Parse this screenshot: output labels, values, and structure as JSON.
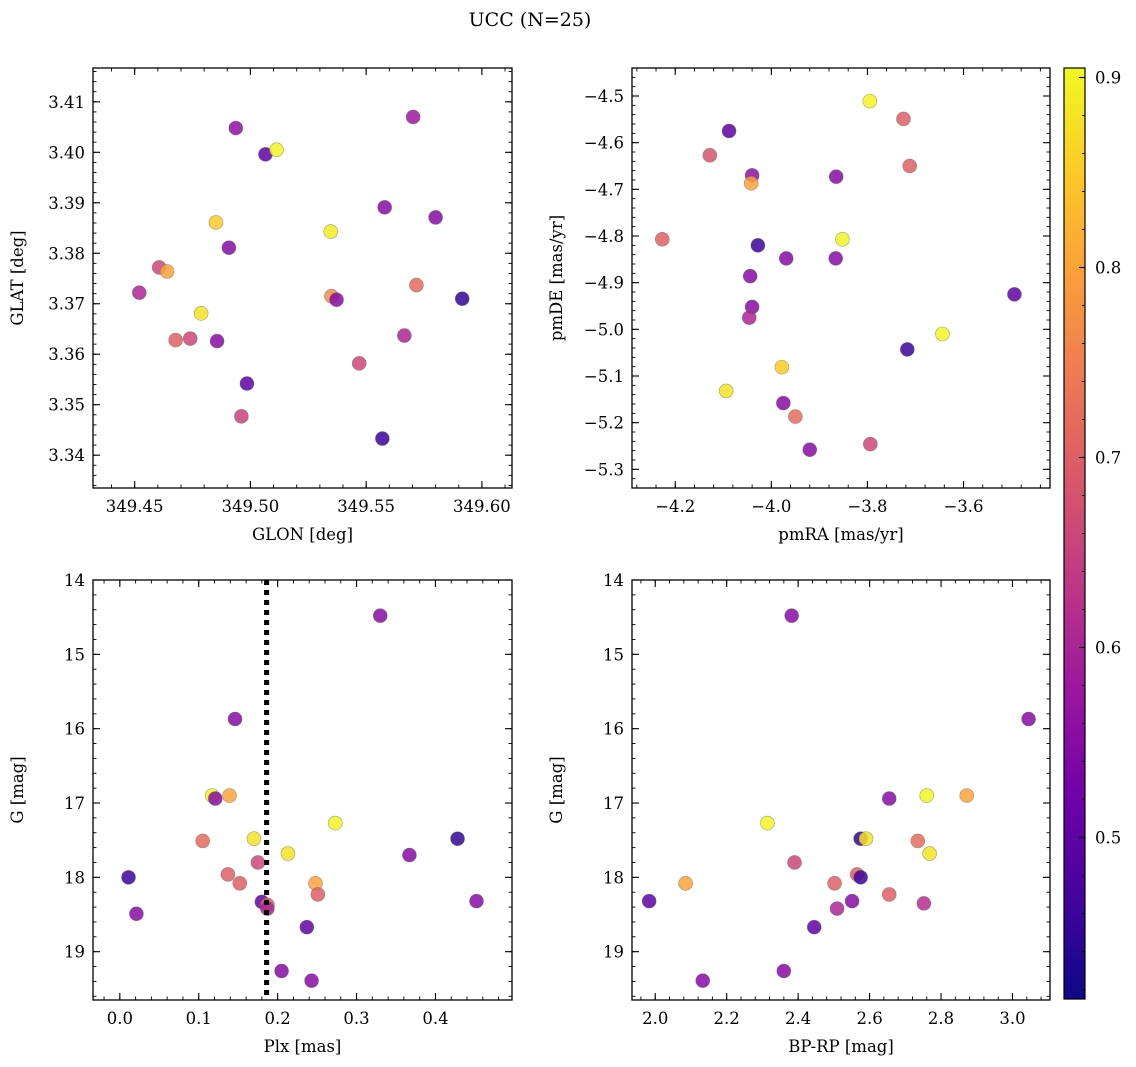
{
  "title": "UCC (N=25)",
  "colors": {
    "colormap": [
      "#0d0887",
      "#46039f",
      "#7201a8",
      "#9c179e",
      "#bd3786",
      "#d8576b",
      "#ed7953",
      "#fb9f3a",
      "#fdca26",
      "#f0f921"
    ],
    "background": "#ffffff",
    "axes": "#000000",
    "vline": "#000000"
  },
  "chart_data": [
    {
      "type": "scatter",
      "name": "position",
      "xlabel": "GLON [deg]",
      "ylabel": "GLAT [deg]",
      "xlim": [
        349.432,
        349.613
      ],
      "ylim": [
        3.3335,
        3.4167
      ],
      "invert_y": false,
      "xticks": [
        349.45,
        349.5,
        349.55,
        349.6
      ],
      "xtick_labels": [
        "349.45",
        "349.50",
        "349.55",
        "349.60"
      ],
      "yticks": [
        3.34,
        3.35,
        3.36,
        3.37,
        3.38,
        3.39,
        3.4,
        3.41
      ],
      "ytick_labels": [
        "3.34",
        "3.35",
        "3.36",
        "3.37",
        "3.38",
        "3.39",
        "3.40",
        "3.41"
      ],
      "points": [
        {
          "x": 349.4937,
          "y": 3.4048,
          "c": 0.56
        },
        {
          "x": 349.5703,
          "y": 3.407,
          "c": 0.58
        },
        {
          "x": 349.5065,
          "y": 3.3996,
          "c": 0.5
        },
        {
          "x": 349.5113,
          "y": 3.4005,
          "c": 0.9
        },
        {
          "x": 349.558,
          "y": 3.3891,
          "c": 0.55
        },
        {
          "x": 349.58,
          "y": 3.3871,
          "c": 0.55
        },
        {
          "x": 349.4851,
          "y": 3.3861,
          "c": 0.85
        },
        {
          "x": 349.5347,
          "y": 3.3843,
          "c": 0.89
        },
        {
          "x": 349.4907,
          "y": 3.3811,
          "c": 0.55
        },
        {
          "x": 349.4606,
          "y": 3.3772,
          "c": 0.66
        },
        {
          "x": 349.464,
          "y": 3.3764,
          "c": 0.8
        },
        {
          "x": 349.452,
          "y": 3.3722,
          "c": 0.6
        },
        {
          "x": 349.535,
          "y": 3.3715,
          "c": 0.77
        },
        {
          "x": 349.5372,
          "y": 3.3708,
          "c": 0.55
        },
        {
          "x": 349.5717,
          "y": 3.3737,
          "c": 0.72
        },
        {
          "x": 349.5915,
          "y": 3.371,
          "c": 0.45
        },
        {
          "x": 349.4787,
          "y": 3.3681,
          "c": 0.88
        },
        {
          "x": 349.5665,
          "y": 3.3637,
          "c": 0.6
        },
        {
          "x": 349.4677,
          "y": 3.3628,
          "c": 0.7
        },
        {
          "x": 349.474,
          "y": 3.3631,
          "c": 0.66
        },
        {
          "x": 349.4856,
          "y": 3.3626,
          "c": 0.55
        },
        {
          "x": 349.547,
          "y": 3.3582,
          "c": 0.66
        },
        {
          "x": 349.4985,
          "y": 3.3542,
          "c": 0.5
        },
        {
          "x": 349.4961,
          "y": 3.3477,
          "c": 0.65
        },
        {
          "x": 349.557,
          "y": 3.3433,
          "c": 0.46
        }
      ]
    },
    {
      "type": "scatter",
      "name": "proper-motion",
      "xlabel": "pmRA [mas/yr]",
      "ylabel": "pmDE [mas/yr]",
      "xlim": [
        -4.29,
        -3.42
      ],
      "ylim": [
        -5.34,
        -4.44
      ],
      "invert_y": false,
      "xticks": [
        -4.2,
        -4.0,
        -3.8,
        -3.6
      ],
      "xtick_labels": [
        "−4.2",
        "−4.0",
        "−3.8",
        "−3.6"
      ],
      "yticks": [
        -5.3,
        -5.2,
        -5.1,
        -5.0,
        -4.9,
        -4.8,
        -4.7,
        -4.6,
        -4.5
      ],
      "ytick_labels": [
        "−5.3",
        "−5.2",
        "−5.1",
        "−5.0",
        "−4.9",
        "−4.8",
        "−4.7",
        "−4.6",
        "−4.5"
      ],
      "points": [
        {
          "x": -3.795,
          "y": -4.511,
          "c": 0.9
        },
        {
          "x": -3.725,
          "y": -4.549,
          "c": 0.7
        },
        {
          "x": -4.088,
          "y": -4.575,
          "c": 0.5
        },
        {
          "x": -4.128,
          "y": -4.627,
          "c": 0.68
        },
        {
          "x": -3.712,
          "y": -4.65,
          "c": 0.7
        },
        {
          "x": -4.04,
          "y": -4.67,
          "c": 0.56
        },
        {
          "x": -4.042,
          "y": -4.687,
          "c": 0.8
        },
        {
          "x": -3.865,
          "y": -4.673,
          "c": 0.55
        },
        {
          "x": -4.227,
          "y": -4.807,
          "c": 0.7
        },
        {
          "x": -3.852,
          "y": -4.807,
          "c": 0.9
        },
        {
          "x": -4.028,
          "y": -4.82,
          "c": 0.46
        },
        {
          "x": -3.969,
          "y": -4.848,
          "c": 0.55
        },
        {
          "x": -3.866,
          "y": -4.848,
          "c": 0.55
        },
        {
          "x": -4.044,
          "y": -4.886,
          "c": 0.55
        },
        {
          "x": -3.494,
          "y": -4.925,
          "c": 0.5
        },
        {
          "x": -4.04,
          "y": -4.952,
          "c": 0.55
        },
        {
          "x": -4.046,
          "y": -4.975,
          "c": 0.6
        },
        {
          "x": -3.644,
          "y": -5.01,
          "c": 0.9
        },
        {
          "x": -3.717,
          "y": -5.043,
          "c": 0.46
        },
        {
          "x": -3.978,
          "y": -5.081,
          "c": 0.85
        },
        {
          "x": -4.094,
          "y": -5.132,
          "c": 0.88
        },
        {
          "x": -3.975,
          "y": -5.158,
          "c": 0.55
        },
        {
          "x": -3.95,
          "y": -5.187,
          "c": 0.72
        },
        {
          "x": -3.794,
          "y": -5.246,
          "c": 0.66
        },
        {
          "x": -3.92,
          "y": -5.258,
          "c": 0.55
        }
      ]
    },
    {
      "type": "scatter",
      "name": "parallax-magnitude",
      "xlabel": "Plx [mas]",
      "ylabel": "G [mag]",
      "xlim": [
        -0.034,
        0.497
      ],
      "ylim": [
        14.0,
        19.65
      ],
      "invert_y": true,
      "vline": 0.186,
      "xticks": [
        0.0,
        0.1,
        0.2,
        0.3,
        0.4
      ],
      "xtick_labels": [
        "0.0",
        "0.1",
        "0.2",
        "0.3",
        "0.4"
      ],
      "yticks": [
        14,
        15,
        16,
        17,
        18,
        19
      ],
      "ytick_labels": [
        "14",
        "15",
        "16",
        "17",
        "18",
        "19"
      ],
      "points": [
        {
          "x": 0.33,
          "y": 14.48,
          "c": 0.55
        },
        {
          "x": 0.146,
          "y": 15.87,
          "c": 0.55
        },
        {
          "x": 0.117,
          "y": 16.9,
          "c": 0.9
        },
        {
          "x": 0.121,
          "y": 16.94,
          "c": 0.55
        },
        {
          "x": 0.139,
          "y": 16.9,
          "c": 0.8
        },
        {
          "x": 0.273,
          "y": 17.27,
          "c": 0.9
        },
        {
          "x": 0.105,
          "y": 17.51,
          "c": 0.72
        },
        {
          "x": 0.17,
          "y": 17.48,
          "c": 0.88
        },
        {
          "x": 0.428,
          "y": 17.48,
          "c": 0.45
        },
        {
          "x": 0.213,
          "y": 17.68,
          "c": 0.88
        },
        {
          "x": 0.367,
          "y": 17.7,
          "c": 0.55
        },
        {
          "x": 0.175,
          "y": 17.8,
          "c": 0.66
        },
        {
          "x": 0.137,
          "y": 17.96,
          "c": 0.7
        },
        {
          "x": 0.011,
          "y": 18.0,
          "c": 0.46
        },
        {
          "x": 0.152,
          "y": 18.08,
          "c": 0.7
        },
        {
          "x": 0.248,
          "y": 18.08,
          "c": 0.8
        },
        {
          "x": 0.251,
          "y": 18.23,
          "c": 0.7
        },
        {
          "x": 0.18,
          "y": 18.33,
          "c": 0.5
        },
        {
          "x": 0.187,
          "y": 18.37,
          "c": 0.7
        },
        {
          "x": 0.187,
          "y": 18.42,
          "c": 0.6
        },
        {
          "x": 0.452,
          "y": 18.32,
          "c": 0.55
        },
        {
          "x": 0.021,
          "y": 18.49,
          "c": 0.55
        },
        {
          "x": 0.237,
          "y": 18.67,
          "c": 0.5
        },
        {
          "x": 0.205,
          "y": 19.26,
          "c": 0.55
        },
        {
          "x": 0.243,
          "y": 19.39,
          "c": 0.55
        }
      ]
    },
    {
      "type": "scatter",
      "name": "color-magnitude",
      "xlabel": "BP-RP [mag]",
      "ylabel": "G [mag]",
      "xlim": [
        1.935,
        3.105
      ],
      "ylim": [
        14.0,
        19.65
      ],
      "invert_y": true,
      "xticks": [
        2.0,
        2.2,
        2.4,
        2.6,
        2.8,
        3.0
      ],
      "xtick_labels": [
        "2.0",
        "2.2",
        "2.4",
        "2.6",
        "2.8",
        "3.0"
      ],
      "yticks": [
        14,
        15,
        16,
        17,
        18,
        19
      ],
      "ytick_labels": [
        "14",
        "15",
        "16",
        "17",
        "18",
        "19"
      ],
      "points": [
        {
          "x": 2.382,
          "y": 14.48,
          "c": 0.55
        },
        {
          "x": 3.045,
          "y": 15.87,
          "c": 0.55
        },
        {
          "x": 2.655,
          "y": 16.94,
          "c": 0.55
        },
        {
          "x": 2.76,
          "y": 16.9,
          "c": 0.9
        },
        {
          "x": 2.872,
          "y": 16.9,
          "c": 0.8
        },
        {
          "x": 2.314,
          "y": 17.27,
          "c": 0.9
        },
        {
          "x": 2.575,
          "y": 17.48,
          "c": 0.45
        },
        {
          "x": 2.59,
          "y": 17.48,
          "c": 0.88
        },
        {
          "x": 2.735,
          "y": 17.51,
          "c": 0.72
        },
        {
          "x": 2.768,
          "y": 17.68,
          "c": 0.88
        },
        {
          "x": 2.39,
          "y": 17.8,
          "c": 0.66
        },
        {
          "x": 2.565,
          "y": 17.96,
          "c": 0.7
        },
        {
          "x": 2.575,
          "y": 18.0,
          "c": 0.46
        },
        {
          "x": 2.085,
          "y": 18.08,
          "c": 0.8
        },
        {
          "x": 2.502,
          "y": 18.08,
          "c": 0.7
        },
        {
          "x": 2.655,
          "y": 18.23,
          "c": 0.7
        },
        {
          "x": 1.983,
          "y": 18.32,
          "c": 0.5
        },
        {
          "x": 2.551,
          "y": 18.32,
          "c": 0.55
        },
        {
          "x": 2.752,
          "y": 18.35,
          "c": 0.62
        },
        {
          "x": 2.509,
          "y": 18.42,
          "c": 0.6
        },
        {
          "x": 2.445,
          "y": 18.67,
          "c": 0.5
        },
        {
          "x": 2.36,
          "y": 19.26,
          "c": 0.55
        },
        {
          "x": 2.133,
          "y": 19.39,
          "c": 0.55
        }
      ]
    }
  ],
  "colorbar": {
    "cmap": "plasma",
    "vmin": 0.415,
    "vmax": 0.905,
    "ticks": [
      0.5,
      0.6,
      0.7,
      0.8,
      0.9
    ],
    "tick_labels": [
      "0.5",
      "0.6",
      "0.7",
      "0.8",
      "0.9"
    ]
  }
}
